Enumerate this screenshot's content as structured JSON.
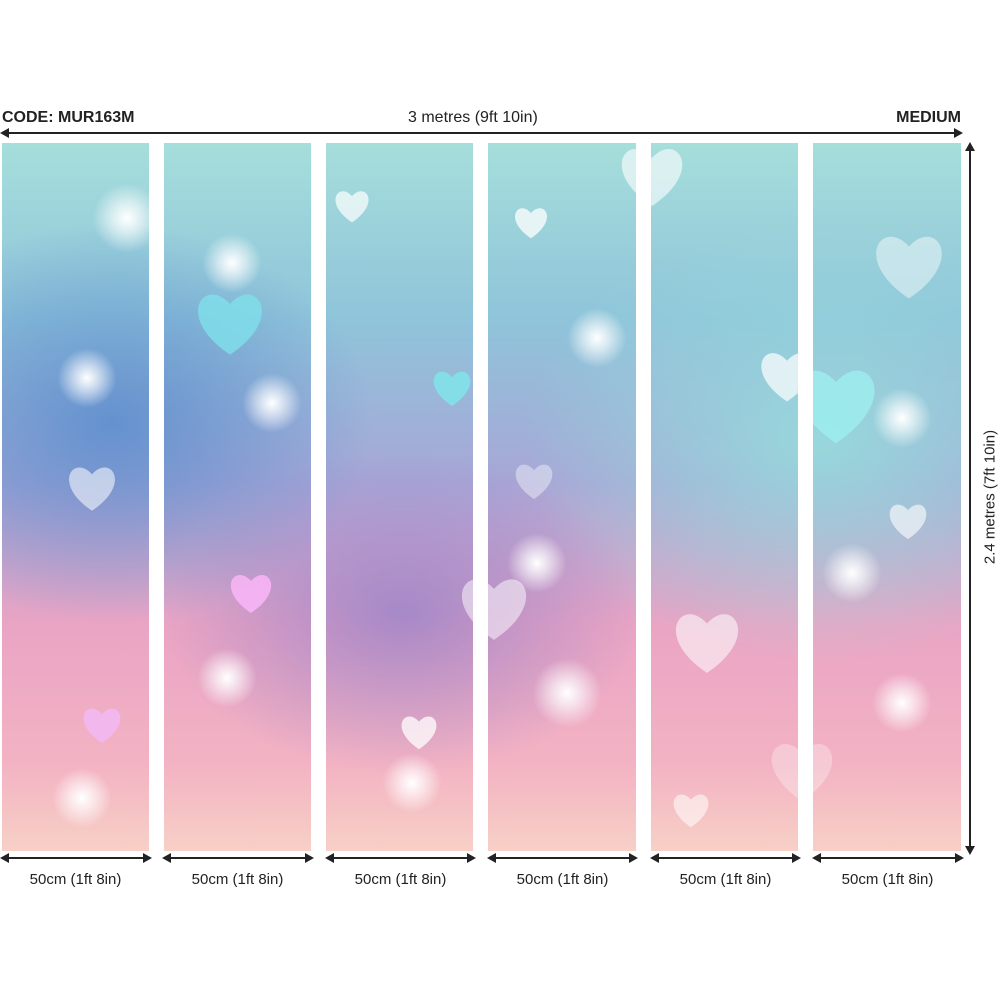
{
  "header": {
    "code": "CODE: MUR163M",
    "width_label": "3 metres (9ft 10in)",
    "size": "MEDIUM"
  },
  "height_label": "2.4 metres (7ft 10in)",
  "panels": [
    {
      "label": "50cm (1ft 8in)"
    },
    {
      "label": "50cm (1ft 8in)"
    },
    {
      "label": "50cm (1ft 8in)"
    },
    {
      "label": "50cm (1ft 8in)"
    },
    {
      "label": "50cm (1ft 8in)"
    },
    {
      "label": "50cm (1ft 8in)"
    }
  ],
  "colors": {
    "teal": "#a6dedb",
    "blue": "#8fc4da",
    "lilac": "#a8a6d6",
    "pink": "#eaa4c4",
    "peach": "#f7d0c6"
  }
}
